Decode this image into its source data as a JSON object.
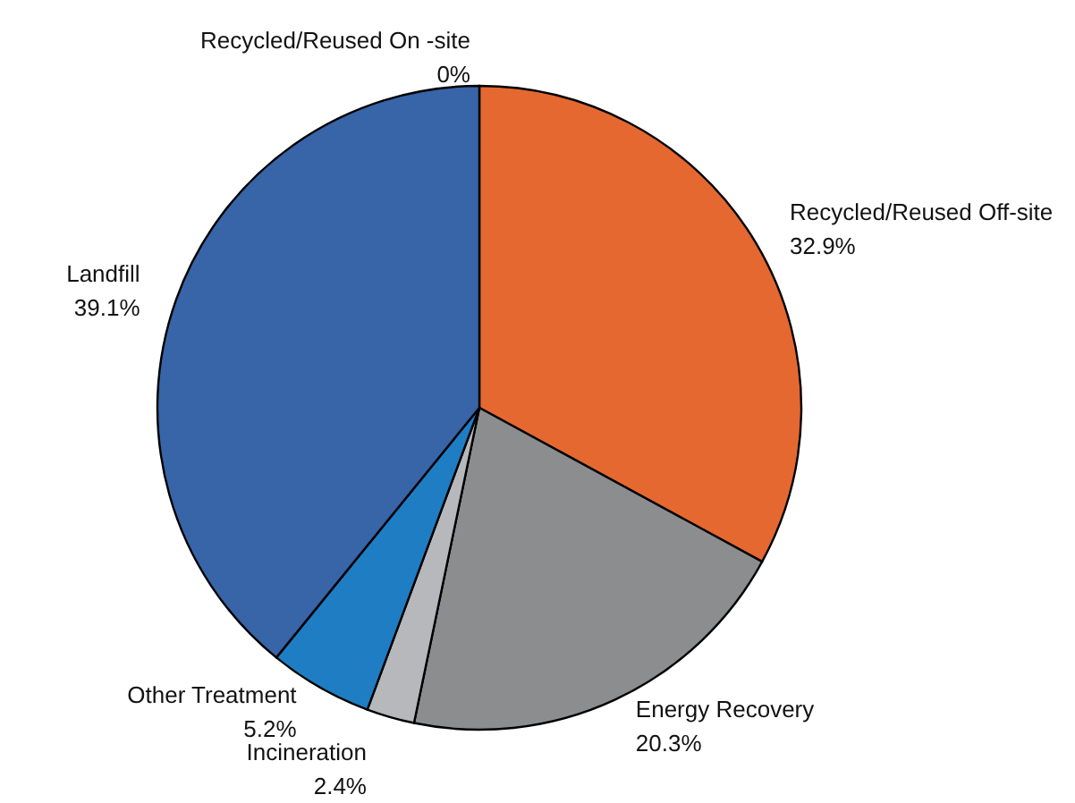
{
  "chart_data": {
    "type": "pie",
    "categories": [
      "Recycled/Reused On -site",
      "Recycled/Reused Off-site",
      "Energy Recovery",
      "Incineration",
      "Other Treatment",
      "Landfill"
    ],
    "values": [
      0,
      32.9,
      20.3,
      2.4,
      5.2,
      39.1
    ],
    "value_labels": [
      "0%",
      "32.9%",
      "20.3%",
      "2.4%",
      "5.2%",
      "39.1%"
    ],
    "colors": [
      "#b7b8bb",
      "#e56830",
      "#8c8d8f",
      "#b7b8bb",
      "#1f7dc4",
      "#3864a8"
    ],
    "legend": false
  }
}
